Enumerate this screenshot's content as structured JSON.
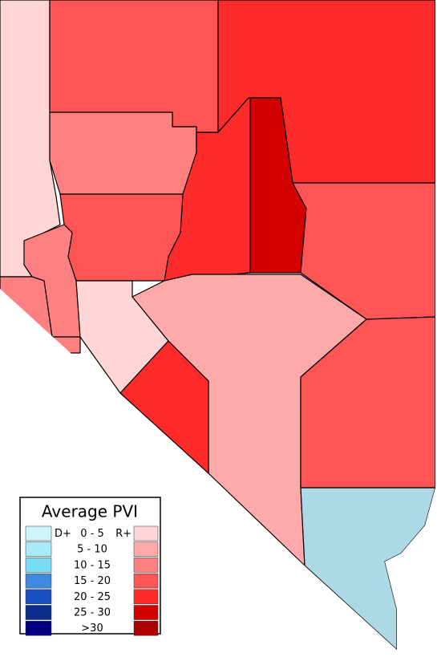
{
  "legend": {
    "title": "Average PVI",
    "prefix": "D+",
    "suffix": "R+",
    "rows": [
      {
        "label": "0 - 5",
        "left_color": "#cdf3fb",
        "right_color": "#ffd5d5"
      },
      {
        "label": "5 - 10",
        "left_color": "#a8ebf8",
        "right_color": "#ffaaaa"
      },
      {
        "label": "10 - 15",
        "left_color": "#77ddf5",
        "right_color": "#ff8080"
      },
      {
        "label": "15 - 20",
        "left_color": "#3f8ae0",
        "right_color": "#ff5555"
      },
      {
        "label": "20 - 25",
        "left_color": "#1a4fbf",
        "right_color": "#ff2a2a"
      },
      {
        "label": "25 - 30",
        "left_color": "#0a2c8a",
        "right_color": "#d40000"
      },
      {
        "label": ">30",
        "left_color": "#000080",
        "right_color": "#aa0000"
      }
    ]
  }
}
